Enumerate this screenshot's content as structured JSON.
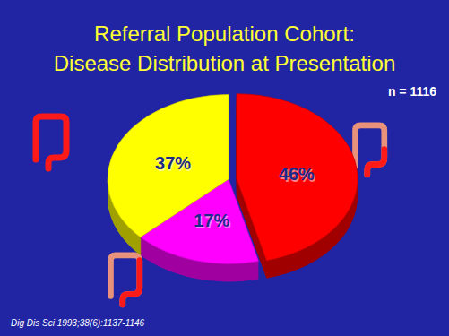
{
  "chart_data": {
    "type": "pie",
    "title": "Referral Population Cohort:",
    "subtitle": "Disease Distribution at Presentation",
    "values": [
      46,
      17,
      37
    ],
    "value_labels": [
      "46%",
      "17%",
      "37%"
    ],
    "colors": [
      "#ff0000",
      "#ff00ff",
      "#ffff00"
    ],
    "data_labels": true,
    "annotations": [
      "n = 1116",
      "Dig Dis Sci 1993;38(6):1137-1146"
    ]
  }
}
